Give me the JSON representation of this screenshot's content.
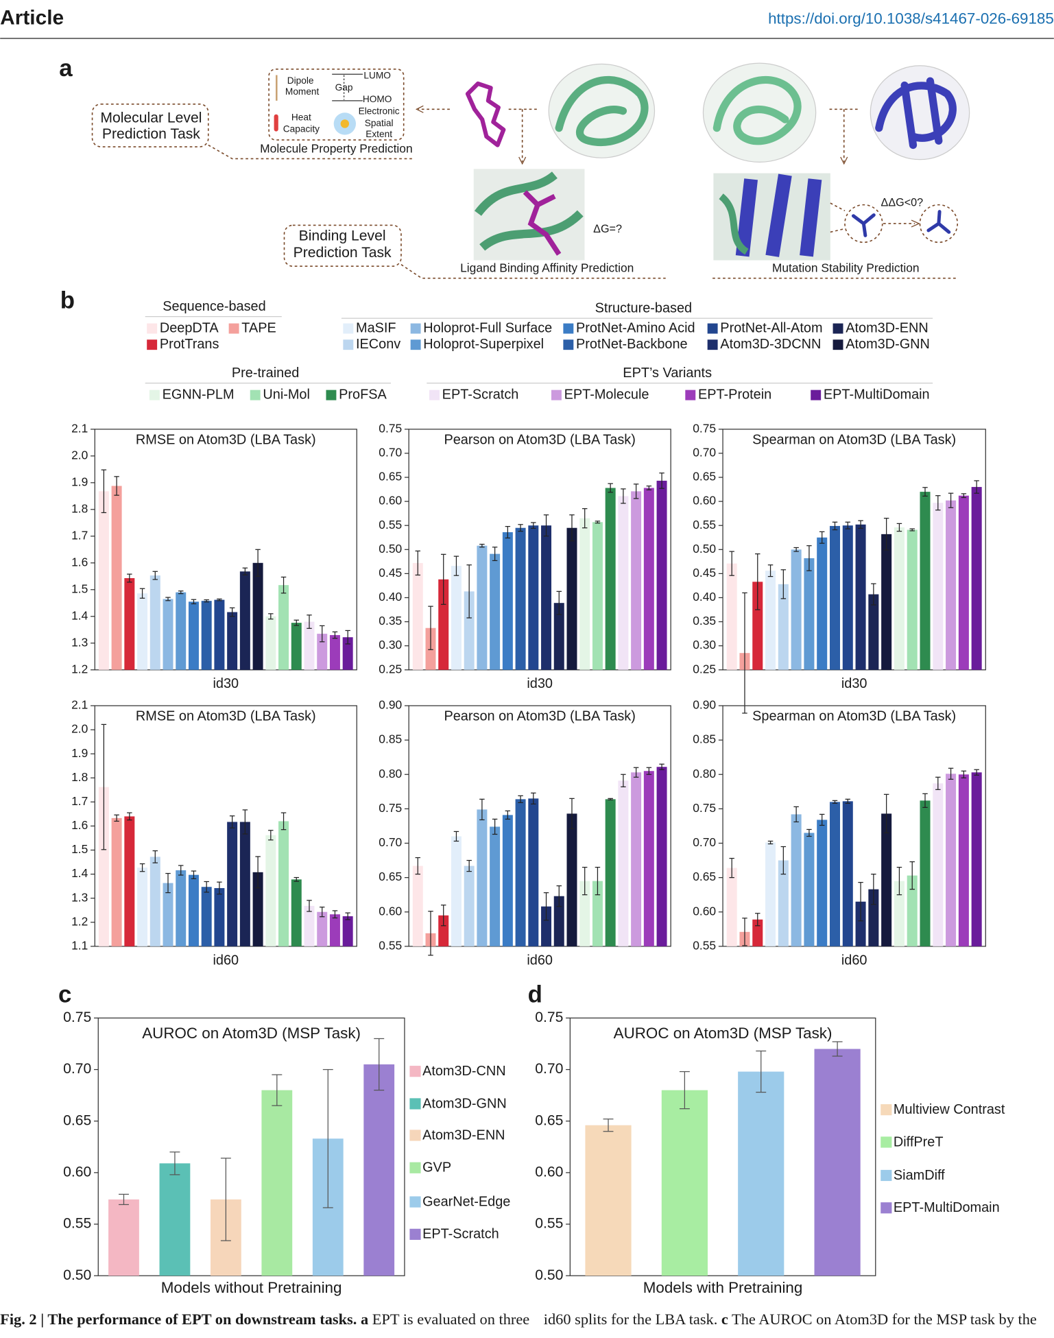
{
  "header": {
    "journal": "Article",
    "doi": "https://doi.org/10.1038/s41467-026-69185"
  },
  "panel_labels": [
    "a",
    "b",
    "c",
    "d"
  ],
  "panel_a": {
    "molecular_task": [
      "Molecular Level",
      "Prediction Task"
    ],
    "dipole": [
      "Dipole",
      "Moment"
    ],
    "gap": "Gap",
    "lumo": "LUMO",
    "homo": "HOMO",
    "electronic": [
      "Electronic",
      "Spatial",
      "Extent"
    ],
    "heat": [
      "Heat",
      "Capacity"
    ],
    "property_caption": "Molecule Property Prediction",
    "binding_task": [
      "Binding Level",
      "Prediction Task"
    ],
    "delta_g": "ΔG=?",
    "lba_caption": "Ligand Binding Affinity Prediction",
    "ddg": "ΔΔG<0?",
    "msp_caption": "Mutation Stability Prediction"
  },
  "legend_b": [
    {
      "title": "Sequence-based",
      "items": [
        {
          "name": "DeepDTA",
          "color": "#fde6e8"
        },
        {
          "name": "TAPE",
          "color": "#f4a09c"
        },
        {
          "name": "ProtTrans",
          "color": "#d62839"
        }
      ]
    },
    {
      "title": "Structure-based",
      "items": [
        {
          "name": "MaSIF",
          "color": "#e2eefa"
        },
        {
          "name": "IEConv",
          "color": "#bcd6ef"
        },
        {
          "name": "Holoprot-Full Surface",
          "color": "#8cb8e2"
        },
        {
          "name": "Holoprot-Superpixel",
          "color": "#5f9ad3"
        },
        {
          "name": "ProtNet-Amino Acid",
          "color": "#3b7cc5"
        },
        {
          "name": "ProtNet-Backbone",
          "color": "#2c5fa8"
        },
        {
          "name": "ProtNet-All-Atom",
          "color": "#22468f"
        },
        {
          "name": "Atom3D-3DCNN",
          "color": "#1e2f6c"
        },
        {
          "name": "Atom3D-ENN",
          "color": "#1b2555"
        },
        {
          "name": "Atom3D-GNN",
          "color": "#151a3d"
        }
      ]
    },
    {
      "title": "Pre-trained",
      "items": [
        {
          "name": "EGNN-PLM",
          "color": "#e4f5e6"
        },
        {
          "name": "Uni-Mol",
          "color": "#a2e2b3"
        },
        {
          "name": "ProFSA",
          "color": "#2e8b4f"
        }
      ]
    },
    {
      "title": "EPT’s Variants",
      "items": [
        {
          "name": "EPT-Scratch",
          "color": "#f1e4f6"
        },
        {
          "name": "EPT-Molecule",
          "color": "#cc9ade"
        },
        {
          "name": "EPT-Protein",
          "color": "#9c3cba"
        },
        {
          "name": "EPT-MultiDomain",
          "color": "#6a1c9b"
        }
      ]
    }
  ],
  "chart_data": [
    {
      "type": "bar",
      "title": "RMSE on Atom3D (LBA Task)",
      "xlabel": "id30",
      "values": [
        1.868,
        1.888,
        1.543,
        1.486,
        1.553,
        1.465,
        1.49,
        1.455,
        1.458,
        1.462,
        1.416,
        1.568,
        1.6,
        1.4,
        1.517,
        1.376,
        1.38,
        1.335,
        1.33,
        1.322
      ],
      "errors": [
        0.08,
        0.035,
        0.015,
        0.018,
        0.015,
        0.006,
        0.005,
        0.008,
        0.004,
        0.003,
        0.016,
        0.013,
        0.05,
        0.01,
        0.03,
        0.01,
        0.025,
        0.03,
        0.012,
        0.025
      ],
      "ylim": [
        1.2,
        2.1
      ],
      "yticks": [
        1.2,
        1.3,
        1.4,
        1.5,
        1.6,
        1.7,
        1.8,
        1.9,
        {
          "value": 2,
          "label": "2.0"
        },
        2.1
      ]
    },
    {
      "type": "bar",
      "title": "Pearson on Atom3D (LBA Task)",
      "xlabel": "id30",
      "values": [
        0.472,
        0.337,
        0.438,
        0.466,
        0.413,
        0.508,
        0.491,
        0.536,
        0.545,
        0.55,
        0.55,
        0.389,
        0.545,
        0.565,
        0.557,
        0.628,
        0.611,
        0.621,
        0.628,
        0.643
      ],
      "errors": [
        0.025,
        0.045,
        0.052,
        0.02,
        0.055,
        0.003,
        0.014,
        0.012,
        0.007,
        0.006,
        0.022,
        0.024,
        0.027,
        0.02,
        0.002,
        0.009,
        0.015,
        0.015,
        0.004,
        0.016
      ],
      "ylim": [
        0.25,
        0.75
      ],
      "yticks": [
        0.25,
        {
          "value": 0.3,
          "label": "0.30"
        },
        0.35,
        {
          "value": 0.4,
          "label": "0.40"
        },
        0.45,
        {
          "value": 0.5,
          "label": "0.50"
        },
        0.55,
        {
          "value": 0.6,
          "label": "0.60"
        },
        0.65,
        {
          "value": 0.7,
          "label": "0.70"
        },
        0.75
      ]
    },
    {
      "type": "bar",
      "title": "Spearman on Atom3D (LBA Task)",
      "xlabel": "id30",
      "values": [
        0.471,
        0.285,
        0.433,
        0.456,
        0.428,
        0.5,
        0.482,
        0.525,
        0.549,
        0.55,
        0.552,
        0.407,
        0.532,
        0.546,
        0.541,
        0.62,
        0.597,
        0.602,
        0.612,
        0.63
      ],
      "errors": [
        0.025,
        0.125,
        0.058,
        0.012,
        0.03,
        0.004,
        0.026,
        0.012,
        0.008,
        0.007,
        0.008,
        0.022,
        0.033,
        0.008,
        0.002,
        0.009,
        0.015,
        0.015,
        0.004,
        0.013
      ],
      "ylim": [
        0.25,
        0.75
      ],
      "yticks": [
        0.25,
        {
          "value": 0.3,
          "label": "0.30"
        },
        0.35,
        {
          "value": 0.4,
          "label": "0.40"
        },
        0.45,
        {
          "value": 0.5,
          "label": "0.50"
        },
        0.55,
        {
          "value": 0.6,
          "label": "0.60"
        },
        0.65,
        {
          "value": 0.7,
          "label": "0.70"
        },
        0.75
      ]
    },
    {
      "type": "bar",
      "title": "RMSE on Atom3D (LBA Task)",
      "xlabel": "id60",
      "values": [
        1.762,
        1.633,
        1.64,
        1.427,
        1.472,
        1.363,
        1.416,
        1.397,
        1.347,
        1.342,
        1.617,
        1.617,
        1.408,
        1.562,
        1.62,
        1.378,
        1.268,
        1.243,
        1.233,
        1.225
      ],
      "errors": [
        0.26,
        0.013,
        0.015,
        0.016,
        0.025,
        0.04,
        0.02,
        0.016,
        0.022,
        0.025,
        0.025,
        0.05,
        0.065,
        0.02,
        0.035,
        0.008,
        0.023,
        0.02,
        0.015,
        0.014
      ],
      "ylim": [
        1.1,
        2.1
      ],
      "yticks": [
        1.1,
        1.2,
        1.3,
        1.4,
        1.5,
        1.6,
        1.7,
        1.8,
        1.9,
        {
          "value": 2,
          "label": "2.0"
        },
        2.1
      ]
    },
    {
      "type": "bar",
      "title": "Pearson on Atom3D (LBA Task)",
      "xlabel": "id60",
      "values": [
        0.667,
        0.569,
        0.595,
        0.71,
        0.667,
        0.749,
        0.724,
        0.741,
        0.764,
        0.765,
        0.608,
        0.623,
        0.743,
        0.645,
        0.645,
        0.764,
        0.791,
        0.803,
        0.805,
        0.811
      ],
      "errors": [
        0.012,
        0.032,
        0.015,
        0.007,
        0.008,
        0.015,
        0.011,
        0.006,
        0.005,
        0.008,
        0.02,
        0.015,
        0.022,
        0.02,
        0.02,
        0.001,
        0.009,
        0.007,
        0.005,
        0.004
      ],
      "ylim": [
        0.55,
        0.9
      ],
      "yticks": [
        0.55,
        {
          "value": 0.6,
          "label": "0.60"
        },
        0.65,
        {
          "value": 0.7,
          "label": "0.70"
        },
        0.75,
        {
          "value": 0.8,
          "label": "0.80"
        },
        0.85,
        {
          "value": 0.9,
          "label": "0.90"
        }
      ]
    },
    {
      "type": "bar",
      "title": "Spearman on Atom3D (LBA Task)",
      "xlabel": "id60",
      "values": [
        0.664,
        0.571,
        0.589,
        0.701,
        0.675,
        0.742,
        0.715,
        0.734,
        0.76,
        0.761,
        0.615,
        0.633,
        0.743,
        0.645,
        0.653,
        0.762,
        0.787,
        0.801,
        0.8,
        0.803
      ],
      "errors": [
        0.014,
        0.02,
        0.009,
        0.002,
        0.02,
        0.011,
        0.005,
        0.008,
        0.002,
        0.003,
        0.028,
        0.022,
        0.028,
        0.02,
        0.02,
        0.01,
        0.009,
        0.008,
        0.005,
        0.004
      ],
      "ylim": [
        0.55,
        0.9
      ],
      "yticks": [
        0.55,
        {
          "value": 0.6,
          "label": "0.60"
        },
        0.65,
        {
          "value": 0.7,
          "label": "0.70"
        },
        0.75,
        {
          "value": 0.8,
          "label": "0.80"
        },
        0.85,
        {
          "value": 0.9,
          "label": "0.90"
        }
      ]
    },
    {
      "type": "bar",
      "title": "AUROC on Atom3D (MSP Task)",
      "xlabel": "Models without Pretraining",
      "series": [
        {
          "name": "Atom3D-CNN",
          "color": "#f4b7c3",
          "values": [
            0.574
          ],
          "errors": [
            0.005
          ]
        },
        {
          "name": "Atom3D-GNN",
          "color": "#5bc0b5",
          "values": [
            0.609
          ],
          "errors": [
            0.011
          ]
        },
        {
          "name": "Atom3D-ENN",
          "color": "#f6d6ba",
          "values": [
            0.574
          ],
          "errors": [
            0.04
          ]
        },
        {
          "name": "GVP",
          "color": "#a8e9a2",
          "values": [
            0.68
          ],
          "errors": [
            0.015
          ]
        },
        {
          "name": "GearNet-Edge",
          "color": "#9ccbea",
          "values": [
            0.633
          ],
          "errors": [
            0.067
          ]
        },
        {
          "name": "EPT-Scratch",
          "color": "#9b80d1",
          "values": [
            0.705
          ],
          "errors": [
            0.025
          ]
        }
      ],
      "ylim": [
        0.5,
        0.75
      ],
      "yticks": [
        {
          "value": 0.5,
          "label": "0.50"
        },
        0.55,
        {
          "value": 0.6,
          "label": "0.60"
        },
        0.65,
        {
          "value": 0.7,
          "label": "0.70"
        },
        0.75
      ]
    },
    {
      "type": "bar",
      "title": "AUROC on Atom3D (MSP Task)",
      "xlabel": "Models with Pretraining",
      "series": [
        {
          "name": "Multiview Contrast",
          "color": "#f6d9b9",
          "values": [
            0.646
          ],
          "errors": [
            0.006
          ]
        },
        {
          "name": "DiffPreT",
          "color": "#a8eda2",
          "values": [
            0.68
          ],
          "errors": [
            0.018
          ]
        },
        {
          "name": "SiamDiff",
          "color": "#9ccbea",
          "values": [
            0.698
          ],
          "errors": [
            0.02
          ]
        },
        {
          "name": "EPT-MultiDomain",
          "color": "#9b80d1",
          "values": [
            0.72
          ],
          "errors": [
            0.007
          ]
        }
      ],
      "ylim": [
        0.5,
        0.75
      ],
      "yticks": [
        {
          "value": 0.5,
          "label": "0.50"
        },
        0.55,
        {
          "value": 0.6,
          "label": "0.60"
        },
        0.65,
        {
          "value": 0.7,
          "label": "0.70"
        },
        0.75
      ]
    }
  ],
  "caption": {
    "left": [
      "Fig. 2 | The performance of EPT on downstream tasks.",
      "a",
      "EPT is evaluated on three"
    ],
    "right": [
      "id60 splits for the LBA task.",
      "c",
      "The AUROC on Atom3D for the MSP task by the"
    ]
  }
}
